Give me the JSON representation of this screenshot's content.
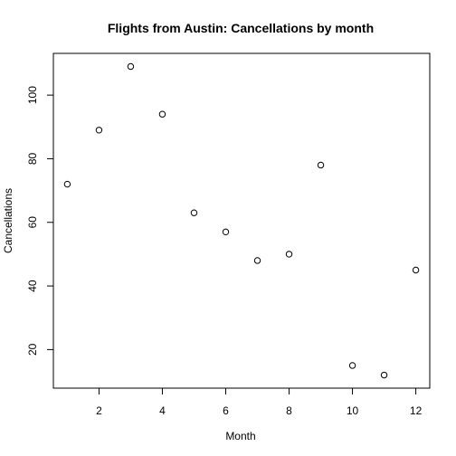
{
  "chart_data": {
    "type": "scatter",
    "title": "Flights from Austin: Cancellations by month",
    "xlabel": "Month",
    "ylabel": "Cancellations",
    "x": [
      1,
      2,
      3,
      4,
      5,
      6,
      7,
      8,
      9,
      10,
      11,
      12
    ],
    "y": [
      72,
      89,
      109,
      94,
      63,
      57,
      48,
      50,
      78,
      15,
      12,
      45
    ],
    "xlim": [
      0.56,
      12.44
    ],
    "ylim": [
      7.88,
      113.12
    ],
    "x_ticks": [
      2,
      4,
      6,
      8,
      10,
      12
    ],
    "y_ticks": [
      20,
      40,
      60,
      80,
      100
    ],
    "marker": "open-circle",
    "marker_color": "#000000",
    "grid": false,
    "legend": "none"
  }
}
